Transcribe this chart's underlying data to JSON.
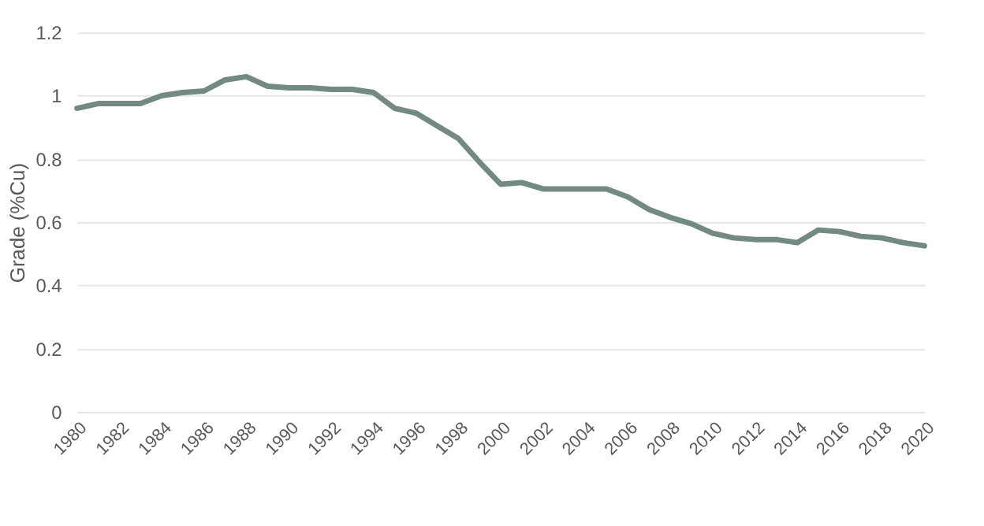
{
  "chart_data": {
    "type": "line",
    "ylabel": "Grade (%Cu)",
    "x": [
      1980,
      1981,
      1982,
      1983,
      1984,
      1985,
      1986,
      1987,
      1988,
      1989,
      1990,
      1991,
      1992,
      1993,
      1994,
      1995,
      1996,
      1997,
      1998,
      1999,
      2000,
      2001,
      2002,
      2003,
      2004,
      2005,
      2006,
      2007,
      2008,
      2009,
      2010,
      2011,
      2012,
      2013,
      2014,
      2015,
      2016,
      2017,
      2018,
      2019,
      2020
    ],
    "series": [
      {
        "color": "#738a84",
        "values": [
          0.96,
          0.975,
          0.975,
          0.975,
          1.0,
          1.01,
          1.015,
          1.05,
          1.06,
          1.03,
          1.025,
          1.025,
          1.02,
          1.02,
          1.01,
          0.96,
          0.945,
          0.905,
          0.865,
          0.79,
          0.72,
          0.725,
          0.705,
          0.705,
          0.705,
          0.705,
          0.68,
          0.64,
          0.615,
          0.595,
          0.565,
          0.55,
          0.545,
          0.545,
          0.535,
          0.575,
          0.57,
          0.555,
          0.55,
          0.535,
          0.525
        ]
      }
    ],
    "xlim": [
      1980,
      2020
    ],
    "xticks": [
      1980,
      1982,
      1984,
      1986,
      1988,
      1990,
      1992,
      1994,
      1996,
      1998,
      2000,
      2002,
      2004,
      2006,
      2008,
      2010,
      2012,
      2014,
      2016,
      2018,
      2020
    ],
    "ylim": [
      0,
      1.2
    ],
    "yticks": [
      0,
      0.2,
      0.4,
      0.6,
      0.8,
      1,
      1.2
    ],
    "grid": "y",
    "marker": "none",
    "line_style": "solid"
  }
}
